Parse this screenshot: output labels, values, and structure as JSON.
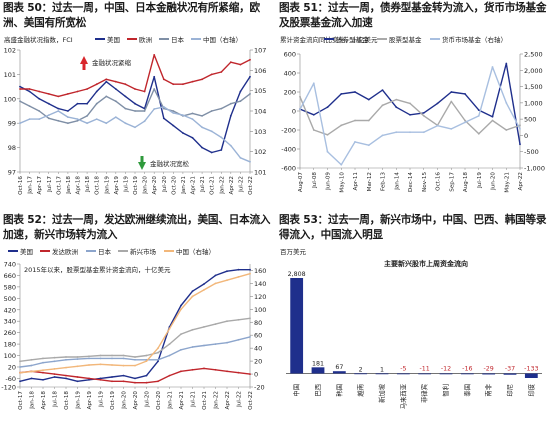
{
  "captions": {
    "c50": "图表 50：过去一周，中国、日本金融状况有所紧缩，欧洲、美国有所宽松",
    "c51": "图表 51：过去一周，债券型基金转为流入，货币市场基金及股票基金流入加速",
    "c52": "图表 52：过去一周，发达欧洲继续流出，美国、日本流入加速，新兴市场转为流入",
    "c53": "图表 53：过去一周，新兴市场中，中国、巴西、韩国等录得流入，中国流入明显"
  },
  "chart_data": [
    {
      "id": "fig50",
      "type": "line",
      "title": "",
      "subtitle": "高盛金融状况指数，FCI",
      "xlabel": "",
      "ylabel": "",
      "legend": {
        "position": "top",
        "entries": [
          "美国",
          "欧洲",
          "日本",
          "中国（右轴）"
        ]
      },
      "colors": {
        "美国": "#1f2f8c",
        "欧洲": "#c0262c",
        "日本": "#7f8fa6",
        "中国（右轴）": "#9bb3d6"
      },
      "x": [
        "Oct-16",
        "Jan-17",
        "Apr-17",
        "Jul-17",
        "Oct-17",
        "Jan-18",
        "Apr-18",
        "Jul-18",
        "Oct-18",
        "Jan-19",
        "Apr-19",
        "Jul-19",
        "Oct-19",
        "Jan-20",
        "Apr-20",
        "Jul-20",
        "Oct-20",
        "Jan-21",
        "Apr-21",
        "Jul-21",
        "Oct-21",
        "Jan-22",
        "Apr-22",
        "Jul-22",
        "Oct-22"
      ],
      "ylim_left": [
        97,
        102
      ],
      "yticks_left": [
        97,
        98,
        99,
        100,
        101,
        102
      ],
      "ylim_right": [
        101,
        107
      ],
      "yticks_right": [
        101,
        102,
        103,
        104,
        105,
        106,
        107
      ],
      "series": [
        {
          "name": "美国",
          "axis": "left",
          "values": [
            100.5,
            100.3,
            100.0,
            99.8,
            99.6,
            99.5,
            99.8,
            99.8,
            100.3,
            100.7,
            100.4,
            100.1,
            99.8,
            99.6,
            100.9,
            99.2,
            98.9,
            98.6,
            98.4,
            98.0,
            97.8,
            97.9,
            99.3,
            100.3,
            100.9
          ]
        },
        {
          "name": "欧洲",
          "axis": "left",
          "values": [
            100.4,
            100.4,
            100.3,
            100.2,
            100.1,
            100.2,
            100.3,
            100.4,
            100.6,
            100.8,
            100.7,
            100.6,
            100.4,
            100.3,
            101.8,
            100.8,
            100.6,
            100.6,
            100.7,
            100.8,
            101.0,
            101.1,
            101.5,
            101.4,
            101.6
          ]
        },
        {
          "name": "日本",
          "axis": "left",
          "values": [
            99.9,
            99.7,
            99.5,
            99.2,
            99.1,
            99.0,
            99.1,
            99.3,
            99.8,
            100.1,
            99.9,
            99.6,
            99.5,
            99.5,
            100.4,
            99.6,
            99.5,
            99.3,
            99.4,
            99.3,
            99.5,
            99.6,
            99.8,
            99.9,
            100.2
          ]
        },
        {
          "name": "中国（右轴）",
          "axis": "right",
          "values": [
            103.4,
            103.6,
            103.6,
            103.8,
            104.0,
            103.7,
            103.6,
            103.4,
            103.6,
            103.4,
            103.7,
            103.4,
            103.2,
            103.5,
            104.1,
            104.2,
            103.9,
            103.8,
            103.6,
            103.2,
            103.0,
            102.7,
            102.3,
            101.7,
            101.5
          ]
        }
      ],
      "annotations": [
        "金融状况紧缩",
        "金融状况宽松"
      ]
    },
    {
      "id": "fig51",
      "type": "line",
      "title": "",
      "subtitle": "累计资金流向同比变化，十亿美元",
      "xlabel": "",
      "ylabel": "",
      "legend": {
        "position": "top",
        "entries": [
          "债券型基金",
          "股票型基金",
          "货币市场基金（右轴）"
        ]
      },
      "colors": {
        "债券型基金": "#1f2f8c",
        "股票型基金": "#a9a9a9",
        "货币市场基金（右轴）": "#a8bfe0"
      },
      "x": [
        "Aug-07",
        "Jul-08",
        "Jun-09",
        "May-10",
        "Apr-11",
        "Mar-12",
        "Feb-13",
        "Jan-14",
        "Dec-14",
        "Nov-15",
        "Oct-16",
        "Sep-17",
        "Aug-18",
        "Jul-19",
        "Jun-20",
        "May-21",
        "Apr-22"
      ],
      "ylim_left": [
        -600,
        600
      ],
      "yticks_left": [
        -600,
        -400,
        -200,
        0,
        200,
        400,
        600
      ],
      "ylim_right": [
        -1000,
        2500
      ],
      "yticks_right": [
        -1000,
        -500,
        0,
        500,
        1000,
        1500,
        2000,
        2500
      ],
      "series": [
        {
          "name": "债券型基金",
          "axis": "left",
          "values": [
            20,
            -40,
            40,
            180,
            200,
            120,
            220,
            40,
            -40,
            -20,
            80,
            200,
            180,
            10,
            -60,
            500,
            -350
          ]
        },
        {
          "name": "股票型基金",
          "axis": "left",
          "values": [
            150,
            -200,
            -250,
            -150,
            -100,
            -100,
            60,
            120,
            80,
            -50,
            -150,
            100,
            -100,
            -240,
            -100,
            -200,
            -150
          ]
        },
        {
          "name": "货币市场基金（右轴）",
          "axis": "right",
          "values": [
            800,
            1600,
            -500,
            -900,
            -200,
            -300,
            0,
            100,
            100,
            100,
            300,
            200,
            400,
            600,
            2100,
            1000,
            200
          ]
        }
      ]
    },
    {
      "id": "fig52",
      "type": "line",
      "title": "",
      "subtitle": "2015年以来，股票型基金累计资金流向，十亿美元",
      "xlabel": "",
      "ylabel": "",
      "legend": {
        "position": "top",
        "entries": [
          "美国",
          "发达欧洲",
          "日本",
          "新兴市场",
          "中国（右轴）"
        ]
      },
      "colors": {
        "美国": "#1f2f8c",
        "发达欧洲": "#c0262c",
        "日本": "#8ca5cc",
        "新兴市场": "#a9a9a9",
        "中国（右轴）": "#f2b77a"
      },
      "x": [
        "Oct-17",
        "Jan-18",
        "Apr-18",
        "Jul-18",
        "Oct-18",
        "Jan-19",
        "Apr-19",
        "Jul-19",
        "Oct-19",
        "Jan-20",
        "Apr-20",
        "Jul-20",
        "Oct-20",
        "Jan-21",
        "Apr-21",
        "Jul-21",
        "Oct-21",
        "Jan-22",
        "Apr-22",
        "Jul-22",
        "Oct-22"
      ],
      "ylim_left": [
        -120,
        740
      ],
      "yticks_left": [
        -120,
        -60,
        20,
        100,
        180,
        260,
        340,
        420,
        500,
        580,
        660,
        740
      ],
      "ylim_right": [
        -20,
        170
      ],
      "yticks_right": [
        -20,
        0,
        20,
        40,
        60,
        80,
        100,
        120,
        140,
        160
      ],
      "series": [
        {
          "name": "美国",
          "axis": "left",
          "values": [
            -80,
            -60,
            -70,
            -50,
            -60,
            -80,
            -70,
            -60,
            -50,
            -40,
            -60,
            -40,
            60,
            300,
            450,
            550,
            600,
            660,
            690,
            700,
            700
          ]
        },
        {
          "name": "发达欧洲",
          "axis": "left",
          "values": [
            -20,
            -10,
            -20,
            -30,
            -40,
            -50,
            -60,
            -70,
            -80,
            -80,
            -90,
            -90,
            -80,
            -40,
            -10,
            0,
            10,
            0,
            -10,
            -20,
            -30
          ]
        },
        {
          "name": "日本",
          "axis": "left",
          "values": [
            20,
            30,
            50,
            60,
            70,
            75,
            80,
            80,
            80,
            80,
            70,
            70,
            70,
            100,
            140,
            160,
            170,
            180,
            190,
            210,
            230
          ]
        },
        {
          "name": "新兴市场",
          "axis": "left",
          "values": [
            60,
            70,
            80,
            85,
            90,
            90,
            95,
            100,
            100,
            100,
            90,
            100,
            120,
            180,
            250,
            280,
            300,
            320,
            340,
            350,
            360
          ]
        },
        {
          "name": "中国（右轴）",
          "axis": "right",
          "values": [
            2,
            4,
            6,
            8,
            10,
            12,
            14,
            15,
            14,
            13,
            13,
            20,
            40,
            70,
            100,
            120,
            130,
            140,
            145,
            150,
            155
          ]
        }
      ]
    },
    {
      "id": "fig53",
      "type": "bar",
      "title": "主要新兴股市上周资金流向",
      "subtitle": "百万美元",
      "xlabel": "",
      "ylabel": "",
      "colors": {
        "bars": "#1f2f8c"
      },
      "categories": [
        "中国",
        "巴西",
        "韩国",
        "越南",
        "新加坡",
        "马来西亚",
        "菲律宾",
        "智利",
        "泰国",
        "南非",
        "印尼",
        "印度"
      ],
      "values": [
        2808,
        181,
        67,
        2,
        1,
        -5,
        -11,
        -12,
        -16,
        -29,
        -37,
        -133
      ],
      "data_labels": [
        "2,808",
        "181",
        "67",
        "2",
        "1",
        "-5",
        "-11",
        "-12",
        "-16",
        "-29",
        "-37",
        "-133"
      ],
      "ylim": [
        -133,
        2808
      ]
    }
  ]
}
